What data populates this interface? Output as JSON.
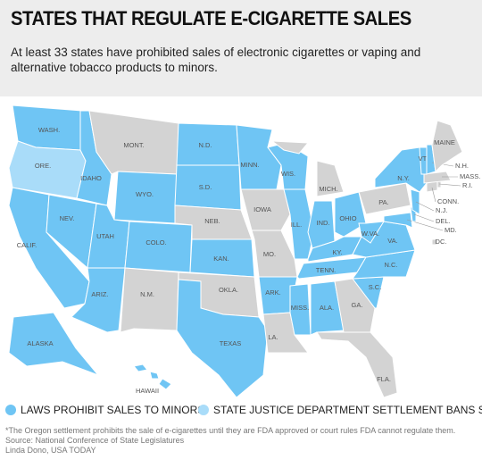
{
  "header": {
    "title": "STATES THAT REGULATE E-CIGARETTE SALES",
    "subtitle": "At least 33 states have prohibited sales of electronic cigarettes or vaping and alternative tobacco products to minors."
  },
  "map": {
    "default_color": "#d3d3d3",
    "legend": [
      {
        "label": "LAWS PROHIBIT SALES TO MINORS",
        "color": "#6fc5f4"
      },
      {
        "label": "STATE JUSTICE DEPARTMENT SETTLEMENT BANS SALE*",
        "color": "#a9dcf9"
      }
    ],
    "states": [
      {
        "label": "WASH.",
        "group": 0
      },
      {
        "label": "ORE.",
        "group": 1
      },
      {
        "label": "CALIF.",
        "group": 0
      },
      {
        "label": "NEV.",
        "group": 0
      },
      {
        "label": "IDAHO",
        "group": 0
      },
      {
        "label": "MONT.",
        "group": null
      },
      {
        "label": "WYO.",
        "group": 0
      },
      {
        "label": "UTAH",
        "group": 0
      },
      {
        "label": "COLO.",
        "group": 0
      },
      {
        "label": "ARIZ.",
        "group": 0
      },
      {
        "label": "N.M.",
        "group": null
      },
      {
        "label": "N.D.",
        "group": 0
      },
      {
        "label": "S.D.",
        "group": 0
      },
      {
        "label": "NEB.",
        "group": null
      },
      {
        "label": "KAN.",
        "group": 0
      },
      {
        "label": "OKLA.",
        "group": null
      },
      {
        "label": "TEXAS",
        "group": 0
      },
      {
        "label": "MINN.",
        "group": 0
      },
      {
        "label": "IOWA",
        "group": null
      },
      {
        "label": "MO.",
        "group": null
      },
      {
        "label": "ARK.",
        "group": 0
      },
      {
        "label": "LA.",
        "group": null
      },
      {
        "label": "WIS.",
        "group": 0
      },
      {
        "label": "ILL.",
        "group": 0
      },
      {
        "label": "MICH.",
        "group": null
      },
      {
        "label": "IND.",
        "group": 0
      },
      {
        "label": "OHIO",
        "group": 0
      },
      {
        "label": "KY.",
        "group": 0
      },
      {
        "label": "TENN.",
        "group": 0
      },
      {
        "label": "MISS.",
        "group": 0
      },
      {
        "label": "ALA.",
        "group": 0
      },
      {
        "label": "GA.",
        "group": null
      },
      {
        "label": "FLA.",
        "group": null
      },
      {
        "label": "S.C.",
        "group": 0
      },
      {
        "label": "N.C.",
        "group": 0
      },
      {
        "label": "VA.",
        "group": 0
      },
      {
        "label": "W.VA.",
        "group": 0
      },
      {
        "label": "PA.",
        "group": null
      },
      {
        "label": "N.Y.",
        "group": 0
      },
      {
        "label": "MD.",
        "group": 0
      },
      {
        "label": "DEL.",
        "group": 0
      },
      {
        "label": "N.J.",
        "group": 0
      },
      {
        "label": "CONN.",
        "group": null
      },
      {
        "label": "R.I.",
        "group": null
      },
      {
        "label": "MASS.",
        "group": null
      },
      {
        "label": "VT.",
        "group": 0
      },
      {
        "label": "N.H.",
        "group": 0
      },
      {
        "label": "MAINE",
        "group": null
      },
      {
        "label": "ALASKA",
        "group": 0
      },
      {
        "label": "HAWAII",
        "group": 0
      },
      {
        "label": "DC.",
        "group": null
      }
    ]
  },
  "footnotes": [
    "*The Oregon settlement prohibits the sale of e-cigarettes until they are FDA approved or court rules FDA cannot regulate them.",
    "Source: National Conference of State Legislatures",
    "Linda Dono, USA TODAY"
  ]
}
